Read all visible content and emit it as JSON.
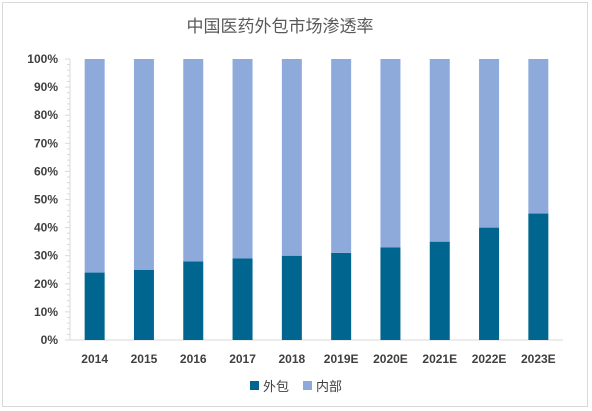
{
  "chart_data": {
    "type": "bar",
    "stacked": true,
    "title": "中国医药外包市场渗透率",
    "categories": [
      "2014",
      "2015",
      "2016",
      "2017",
      "2018",
      "2019E",
      "2020E",
      "2021E",
      "2022E",
      "2023E"
    ],
    "series": [
      {
        "name": "外包",
        "color": "#00668f",
        "values": [
          24,
          25,
          28,
          29,
          30,
          31,
          33,
          35,
          40,
          45
        ]
      },
      {
        "name": "内部",
        "color": "#8eaadb",
        "values": [
          76,
          75,
          72,
          71,
          70,
          69,
          67,
          65,
          60,
          55
        ]
      }
    ],
    "yticks": [
      "0%",
      "10%",
      "20%",
      "30%",
      "40%",
      "50%",
      "60%",
      "70%",
      "80%",
      "90%",
      "100%"
    ],
    "ylim": [
      0,
      100
    ],
    "legend_position": "bottom",
    "grid": false
  }
}
